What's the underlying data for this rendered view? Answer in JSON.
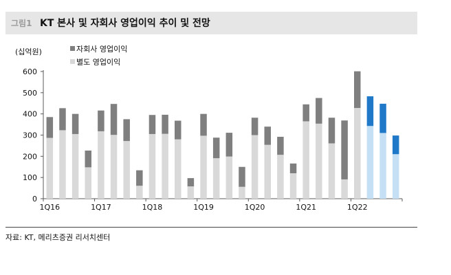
{
  "figure": {
    "label": "그림1",
    "title": "KT 본사 및 자회사 영업이익 추이 및 전망",
    "source": "자료: KT, 메리츠증권 리서치센터"
  },
  "chart_data": {
    "type": "bar",
    "stacked": true,
    "unit_label": "(십억원)",
    "ylim": [
      0,
      600
    ],
    "yticks": [
      0,
      100,
      200,
      300,
      400,
      500,
      600
    ],
    "grid": false,
    "legend_position": "top-left",
    "categories": [
      "1Q16",
      "2Q16",
      "3Q16",
      "4Q16",
      "1Q17",
      "2Q17",
      "3Q17",
      "4Q17",
      "1Q18",
      "2Q18",
      "3Q18",
      "4Q18",
      "1Q19",
      "2Q19",
      "3Q19",
      "4Q19",
      "1Q20",
      "2Q20",
      "3Q20",
      "4Q20",
      "1Q21",
      "2Q21",
      "3Q21",
      "4Q21",
      "1Q22",
      "2Q22",
      "3Q22",
      "4Q22"
    ],
    "x_tick_labels": [
      "1Q16",
      "1Q17",
      "1Q18",
      "1Q19",
      "1Q20",
      "1Q21",
      "1Q22"
    ],
    "forecast_from": "2Q22",
    "series": [
      {
        "name": "별도 영업이익",
        "values": [
          287,
          323,
          305,
          148,
          318,
          301,
          272,
          61,
          305,
          306,
          280,
          58,
          297,
          191,
          199,
          56,
          300,
          254,
          207,
          120,
          365,
          354,
          261,
          91,
          428,
          343,
          310,
          210
        ]
      },
      {
        "name": "자회사 영업이익",
        "values": [
          98,
          104,
          95,
          79,
          98,
          146,
          103,
          73,
          90,
          90,
          88,
          39,
          103,
          97,
          112,
          94,
          82,
          86,
          85,
          46,
          80,
          121,
          121,
          278,
          173,
          140,
          138,
          88
        ]
      }
    ],
    "colors": {
      "base_actual": "#d9d9d9",
      "sub_actual": "#7f7f7f",
      "base_forecast": "#c5e0f4",
      "sub_forecast": "#1f78c8",
      "axis": "#595959",
      "text": "#111111"
    }
  }
}
